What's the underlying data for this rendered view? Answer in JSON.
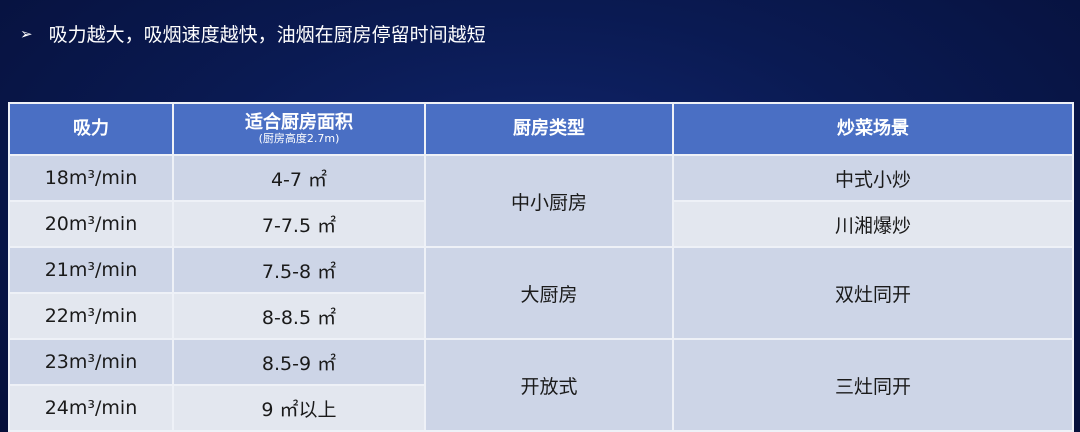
{
  "heading": {
    "bullet_icon": "arrow-right-icon",
    "text": "吸力越大，吸烟速度越快，油烟在厨房停留时间越短"
  },
  "table": {
    "headers": {
      "suction": "吸力",
      "area": "适合厨房面积",
      "area_note": "(厨房高度2.7m)",
      "kitchen_type": "厨房类型",
      "scene": "炒菜场景"
    },
    "rows": [
      {
        "suction": "18m³/min",
        "area": "4-7 ㎡"
      },
      {
        "suction": "20m³/min",
        "area": "7-7.5 ㎡"
      },
      {
        "suction": "21m³/min",
        "area": "7.5-8 ㎡"
      },
      {
        "suction": "22m³/min",
        "area": "8-8.5 ㎡"
      },
      {
        "suction": "23m³/min",
        "area": "8.5-9 ㎡"
      },
      {
        "suction": "24m³/min",
        "area": "9 ㎡以上"
      }
    ],
    "kitchen_types": [
      "中小厨房",
      "大厨房",
      "开放式"
    ],
    "scenes": [
      "中式小炒",
      "川湘爆炒",
      "双灶同开",
      "三灶同开"
    ]
  },
  "colors": {
    "header": "#4a6fc4",
    "background": "#0a1a52",
    "row_dark": "#cdd5e7",
    "row_light": "#e3e7ef"
  }
}
